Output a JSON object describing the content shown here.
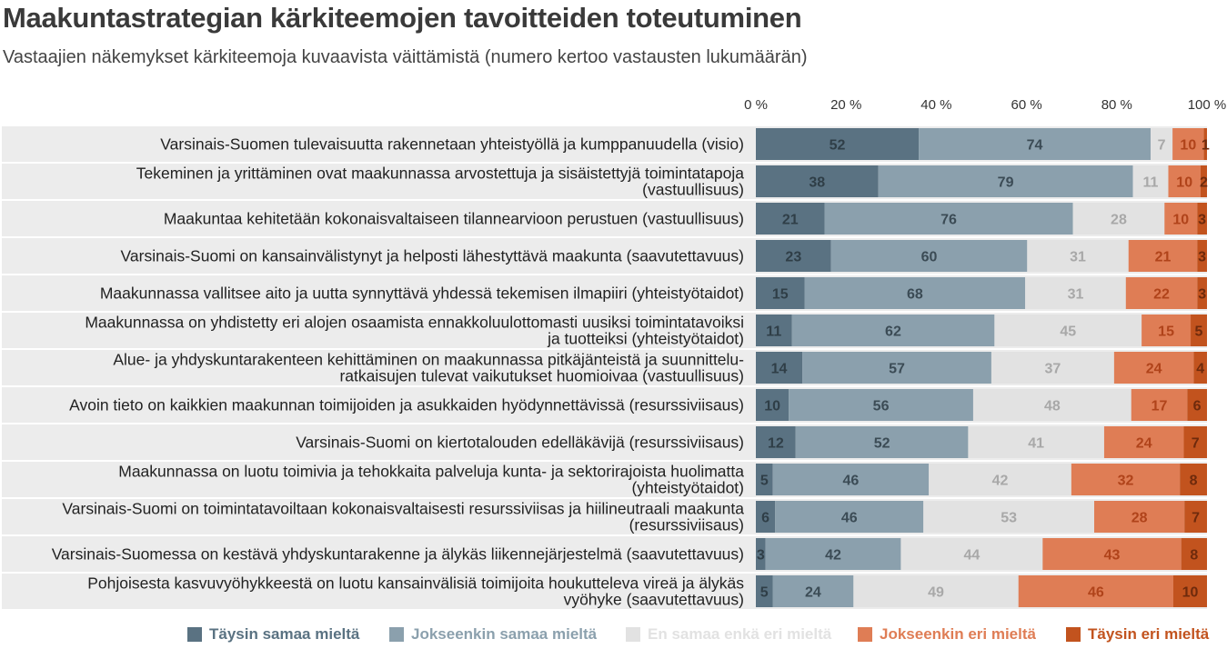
{
  "title": "Maakuntastrategian kärkiteemojen tavoitteiden toteutuminen",
  "subtitle": "Vastaajien näkemykset kärkiteemoja kuvaavista väittämistä (numero kertoo vastausten lukumäärän)",
  "colors": {
    "strongly_agree": "#5a7282",
    "agree": "#8ba0ad",
    "neutral": "#e2e2e2",
    "disagree": "#df7d55",
    "strongly_disagree": "#c2531e",
    "row_band": "#ececec"
  },
  "chart_data": {
    "type": "bar",
    "orientation": "horizontal",
    "stacked": "100%",
    "x_ticks": [
      "0 %",
      "20 %",
      "40 %",
      "60 %",
      "80 %",
      "100 %"
    ],
    "xlim": [
      0,
      100
    ],
    "categories": [
      "Varsinais-Suomen tulevaisuutta rakennetaan yhteistyöllä ja kumppanuudella (visio)",
      "Tekeminen ja yrittäminen ovat maakunnassa arvostettuja ja sisäistettyjä toimintatapoja\n(vastuullisuus)",
      "Maakuntaa kehitetään kokonaisvaltaiseen tilannearvioon perustuen (vastuullisuus)",
      "Varsinais-Suomi on kansainvälistynyt ja helposti lähestyttävä maakunta (saavutettavuus)",
      "Maakunnassa vallitsee aito ja uutta synnyttävä yhdessä tekemisen ilmapiiri (yhteistyötaidot)",
      "Maakunnassa on yhdistetty eri alojen osaamista ennakkoluulottomasti uusiksi toimintatavoiksi\nja tuotteiksi (yhteistyötaidot)",
      "Alue- ja yhdyskuntarakenteen kehittäminen on maakunnassa pitkäjänteistä ja suunnittelu-\nratkaisujen tulevat vaikutukset huomioivaa (vastuullisuus)",
      "Avoin tieto on kaikkien maakunnan toimijoiden ja asukkaiden hyödynnettävissä (resurssiviisaus)",
      "Varsinais-Suomi on kiertotalouden edelläkävijä (resurssiviisaus)",
      "Maakunnassa on luotu toimivia ja tehokkaita palveluja kunta- ja sektorirajoista huolimatta\n(yhteistyötaidot)",
      "Varsinais-Suomi on toimintatavoiltaan kokonaisvaltaisesti resurssiviisas ja hiilineutraali maakunta\n(resurssiviisaus)",
      "Varsinais-Suomessa on kestävä yhdyskuntarakenne ja älykäs liikennejärjestelmä (saavutettavuus)",
      "Pohjoisesta kasvuvyöhykkeestä on luotu kansainvälisiä toimijoita houkutteleva vireä ja älykäs\nvyöhyke (saavutettavuus)"
    ],
    "series": [
      {
        "name": "Täysin samaa mieltä",
        "color_key": "strongly_agree",
        "label_color": "#2f3e47",
        "values": [
          52,
          38,
          21,
          23,
          15,
          11,
          14,
          10,
          12,
          5,
          6,
          3,
          5
        ]
      },
      {
        "name": "Jokseenkin samaa mieltä",
        "color_key": "agree",
        "label_color": "#3b4b55",
        "values": [
          74,
          79,
          76,
          60,
          68,
          62,
          57,
          56,
          52,
          46,
          46,
          42,
          24
        ]
      },
      {
        "name": "En samaa enkä eri mieltä",
        "color_key": "neutral",
        "label_color": "#a8a8a8",
        "values": [
          7,
          11,
          28,
          31,
          31,
          45,
          37,
          48,
          41,
          42,
          53,
          44,
          49
        ]
      },
      {
        "name": "Jokseenkin eri mieltä",
        "color_key": "disagree",
        "label_color": "#b0431a",
        "values": [
          10,
          10,
          10,
          21,
          22,
          15,
          24,
          17,
          24,
          32,
          28,
          43,
          46
        ]
      },
      {
        "name": "Täysin eri mieltä",
        "color_key": "strongly_disagree",
        "label_color": "#6e2a0c",
        "values": [
          1,
          2,
          3,
          3,
          3,
          5,
          4,
          6,
          7,
          8,
          7,
          8,
          10
        ]
      }
    ]
  }
}
